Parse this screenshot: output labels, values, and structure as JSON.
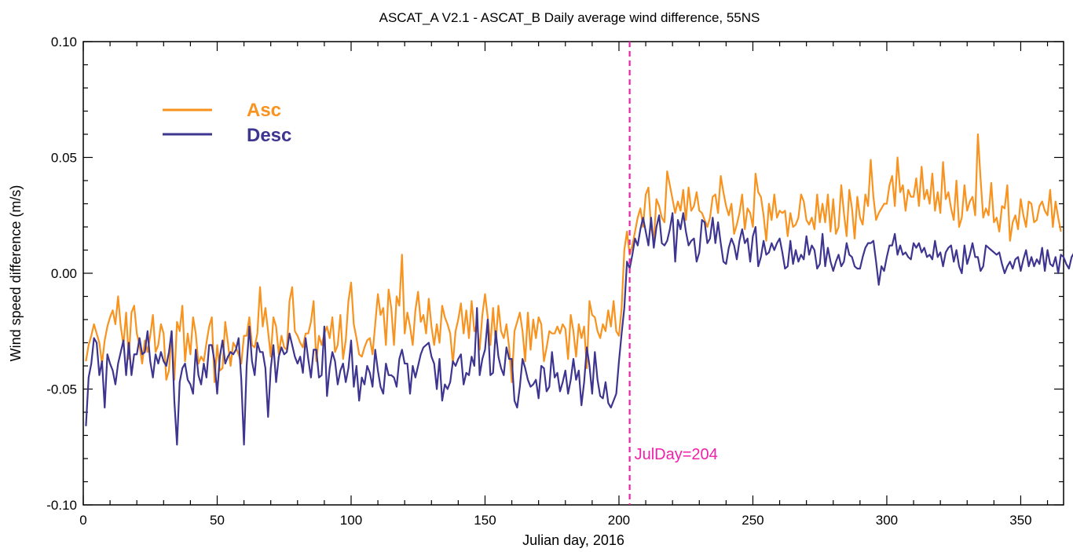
{
  "chart_data": {
    "type": "line",
    "title": "ASCAT_A V2.1 - ASCAT_B Daily average wind difference, 55NS",
    "xlabel": "Julian day, 2016",
    "ylabel": "Wind speed difference (m/s)",
    "xlim": [
      0,
      366
    ],
    "ylim": [
      -0.1,
      0.1
    ],
    "x_ticks": [
      0,
      50,
      100,
      150,
      200,
      250,
      300,
      350
    ],
    "x_tick_labels": [
      "0",
      "50",
      "100",
      "150",
      "200",
      "250",
      "300",
      "350"
    ],
    "y_ticks": [
      -0.1,
      -0.05,
      0.0,
      0.05,
      0.1
    ],
    "y_tick_labels": [
      "-0.10",
      "-0.05",
      "0.00",
      "0.05",
      "0.10"
    ],
    "grid": false,
    "legend_position": "top-left",
    "series": [
      {
        "name": "Asc",
        "color": "#f7931e",
        "x_start": 1,
        "x_step": 1,
        "values": [
          -0.038,
          -0.031,
          -0.027,
          -0.022,
          -0.026,
          -0.03,
          -0.039,
          -0.029,
          -0.023,
          -0.019,
          -0.016,
          -0.022,
          -0.01,
          -0.023,
          -0.031,
          -0.017,
          -0.037,
          -0.017,
          -0.014,
          -0.026,
          -0.031,
          -0.039,
          -0.029,
          -0.034,
          -0.027,
          -0.018,
          -0.034,
          -0.031,
          -0.022,
          -0.026,
          -0.046,
          -0.042,
          -0.025,
          -0.046,
          -0.021,
          -0.025,
          -0.014,
          -0.038,
          -0.026,
          -0.035,
          -0.019,
          -0.026,
          -0.039,
          -0.036,
          -0.038,
          -0.03,
          -0.023,
          -0.019,
          -0.047,
          -0.031,
          -0.042,
          -0.041,
          -0.021,
          -0.03,
          -0.04,
          -0.03,
          -0.032,
          -0.035,
          -0.039,
          -0.027,
          -0.027,
          -0.019,
          -0.031,
          -0.032,
          -0.026,
          -0.006,
          -0.023,
          -0.015,
          -0.025,
          -0.036,
          -0.019,
          -0.023,
          -0.035,
          -0.027,
          -0.032,
          -0.033,
          -0.012,
          -0.006,
          -0.025,
          -0.027,
          -0.03,
          -0.032,
          -0.026,
          -0.026,
          -0.021,
          -0.012,
          -0.038,
          -0.027,
          -0.031,
          -0.026,
          -0.023,
          -0.028,
          -0.019,
          -0.034,
          -0.031,
          -0.018,
          -0.037,
          -0.029,
          -0.012,
          -0.004,
          -0.022,
          -0.028,
          -0.035,
          -0.036,
          -0.032,
          -0.029,
          -0.028,
          -0.035,
          -0.022,
          -0.009,
          -0.018,
          -0.015,
          -0.031,
          -0.007,
          -0.015,
          -0.031,
          -0.01,
          -0.014,
          0.008,
          -0.026,
          -0.017,
          -0.023,
          -0.031,
          -0.016,
          -0.008,
          -0.021,
          -0.018,
          -0.026,
          -0.011,
          -0.023,
          -0.031,
          -0.022,
          -0.03,
          -0.014,
          -0.019,
          -0.022,
          -0.026,
          -0.039,
          -0.025,
          -0.02,
          -0.013,
          -0.026,
          -0.016,
          -0.028,
          -0.012,
          -0.025,
          -0.022,
          -0.033,
          -0.018,
          -0.009,
          -0.019,
          -0.031,
          -0.015,
          -0.03,
          -0.014,
          -0.025,
          -0.028,
          -0.022,
          -0.032,
          -0.047,
          -0.025,
          -0.021,
          -0.017,
          -0.025,
          -0.038,
          -0.017,
          -0.033,
          -0.02,
          -0.028,
          -0.019,
          -0.022,
          -0.038,
          -0.032,
          -0.025,
          -0.026,
          -0.026,
          -0.023,
          -0.026,
          -0.022,
          -0.024,
          -0.037,
          -0.018,
          -0.025,
          -0.036,
          -0.022,
          -0.028,
          -0.023,
          -0.041,
          -0.012,
          -0.018,
          -0.019,
          -0.025,
          -0.028,
          -0.022,
          -0.025,
          -0.016,
          -0.023,
          -0.012,
          -0.025,
          -0.027,
          -0.015,
          0.01,
          0.018,
          0.008,
          0.012,
          0.018,
          0.024,
          0.028,
          0.02,
          0.034,
          0.037,
          0.02,
          0.014,
          0.032,
          0.029,
          0.024,
          0.022,
          0.044,
          0.038,
          0.032,
          0.026,
          0.031,
          0.027,
          0.036,
          0.023,
          0.037,
          0.027,
          0.029,
          0.035,
          0.027,
          0.026,
          0.023,
          0.02,
          0.024,
          0.033,
          0.034,
          0.026,
          0.042,
          0.035,
          0.029,
          0.025,
          0.03,
          0.017,
          0.021,
          0.026,
          0.034,
          0.019,
          0.028,
          0.026,
          0.02,
          0.043,
          0.035,
          0.033,
          0.025,
          0.014,
          0.03,
          0.023,
          0.034,
          0.024,
          0.027,
          0.026,
          0.027,
          0.016,
          0.026,
          0.02,
          0.021,
          0.024,
          0.034,
          0.031,
          0.023,
          0.021,
          0.024,
          0.019,
          0.034,
          0.022,
          0.03,
          0.022,
          0.034,
          0.018,
          0.032,
          0.017,
          0.02,
          0.038,
          0.026,
          0.016,
          0.036,
          0.028,
          0.015,
          0.033,
          0.024,
          0.021,
          0.034,
          0.029,
          0.049,
          0.033,
          0.023,
          0.026,
          0.028,
          0.03,
          0.03,
          0.038,
          0.042,
          0.029,
          0.05,
          0.035,
          0.038,
          0.027,
          0.036,
          0.033,
          0.033,
          0.041,
          0.029,
          0.046,
          0.032,
          0.036,
          0.03,
          0.043,
          0.027,
          0.035,
          0.026,
          0.048,
          0.032,
          0.035,
          0.028,
          0.023,
          0.04,
          0.02,
          0.024,
          0.038,
          0.027,
          0.031,
          0.033,
          0.025,
          0.06,
          0.041,
          0.024,
          0.028,
          0.025,
          0.039,
          0.022,
          0.024,
          0.018,
          0.029,
          0.028,
          0.038,
          0.014,
          0.022,
          0.025,
          0.019,
          0.032,
          0.025,
          0.02,
          0.031,
          0.03,
          0.022,
          0.023,
          0.029,
          0.031,
          0.027,
          0.025,
          0.036,
          0.02,
          0.031,
          0.024,
          0.018
        ]
      },
      {
        "name": "Desc",
        "color": "#3d3590",
        "x_start": 1,
        "x_step": 1,
        "values": [
          -0.066,
          -0.045,
          -0.039,
          -0.028,
          -0.03,
          -0.044,
          -0.038,
          -0.058,
          -0.035,
          -0.039,
          -0.042,
          -0.048,
          -0.039,
          -0.034,
          -0.029,
          -0.044,
          -0.03,
          -0.044,
          -0.035,
          -0.035,
          -0.028,
          -0.035,
          -0.034,
          -0.025,
          -0.038,
          -0.045,
          -0.035,
          -0.039,
          -0.034,
          -0.038,
          -0.04,
          -0.034,
          -0.025,
          -0.055,
          -0.074,
          -0.047,
          -0.041,
          -0.039,
          -0.046,
          -0.048,
          -0.052,
          -0.033,
          -0.044,
          -0.048,
          -0.039,
          -0.045,
          -0.031,
          -0.031,
          -0.038,
          -0.052,
          -0.036,
          -0.029,
          -0.039,
          -0.036,
          -0.034,
          -0.035,
          -0.033,
          -0.028,
          -0.046,
          -0.074,
          -0.04,
          -0.023,
          -0.038,
          -0.044,
          -0.03,
          -0.034,
          -0.034,
          -0.041,
          -0.062,
          -0.041,
          -0.031,
          -0.047,
          -0.036,
          -0.032,
          -0.035,
          -0.034,
          -0.026,
          -0.031,
          -0.036,
          -0.039,
          -0.036,
          -0.043,
          -0.028,
          -0.037,
          -0.045,
          -0.033,
          -0.033,
          -0.045,
          -0.044,
          -0.023,
          -0.053,
          -0.041,
          -0.034,
          -0.038,
          -0.048,
          -0.042,
          -0.039,
          -0.047,
          -0.041,
          -0.029,
          -0.049,
          -0.04,
          -0.055,
          -0.045,
          -0.048,
          -0.04,
          -0.043,
          -0.049,
          -0.033,
          -0.042,
          -0.049,
          -0.052,
          -0.039,
          -0.044,
          -0.044,
          -0.045,
          -0.049,
          -0.037,
          -0.033,
          -0.039,
          -0.039,
          -0.052,
          -0.04,
          -0.045,
          -0.04,
          -0.035,
          -0.032,
          -0.031,
          -0.03,
          -0.036,
          -0.039,
          -0.05,
          -0.037,
          -0.055,
          -0.048,
          -0.05,
          -0.047,
          -0.038,
          -0.04,
          -0.037,
          -0.035,
          -0.048,
          -0.043,
          -0.044,
          -0.036,
          -0.04,
          -0.015,
          -0.044,
          -0.037,
          -0.033,
          -0.02,
          -0.044,
          -0.043,
          -0.025,
          -0.036,
          -0.041,
          -0.044,
          -0.032,
          -0.037,
          -0.037,
          -0.055,
          -0.058,
          -0.049,
          -0.037,
          -0.041,
          -0.046,
          -0.049,
          -0.048,
          -0.046,
          -0.054,
          -0.04,
          -0.041,
          -0.051,
          -0.049,
          -0.034,
          -0.045,
          -0.043,
          -0.051,
          -0.047,
          -0.042,
          -0.052,
          -0.046,
          -0.037,
          -0.046,
          -0.042,
          -0.057,
          -0.047,
          -0.032,
          -0.04,
          -0.052,
          -0.034,
          -0.046,
          -0.053,
          -0.054,
          -0.047,
          -0.056,
          -0.058,
          -0.055,
          -0.052,
          -0.038,
          -0.026,
          -0.015,
          0.005,
          0.002,
          0.008,
          0.015,
          0.012,
          0.019,
          0.024,
          0.018,
          0.012,
          0.024,
          0.011,
          0.02,
          0.025,
          0.013,
          0.012,
          0.014,
          0.019,
          0.026,
          0.005,
          0.023,
          0.019,
          0.026,
          0.018,
          0.012,
          0.014,
          0.015,
          0.005,
          0.009,
          0.023,
          0.022,
          0.013,
          0.015,
          0.024,
          0.013,
          0.022,
          0.013,
          0.005,
          0.004,
          0.011,
          0.015,
          0.012,
          0.006,
          0.014,
          0.019,
          0.013,
          0.015,
          0.005,
          0.016,
          0.02,
          0.003,
          0.007,
          0.014,
          0.008,
          0.009,
          0.013,
          0.01,
          0.013,
          0.015,
          0.009,
          0.002,
          0.003,
          0.014,
          0.004,
          0.01,
          0.005,
          0.008,
          0.006,
          0.016,
          0.008,
          0.012,
          0.01,
          0.002,
          0.004,
          0.017,
          0.003,
          0.011,
          0.005,
          0.001,
          0.005,
          0.008,
          0.003,
          0.005,
          0.013,
          0.008,
          0.007,
          0.003,
          0.002,
          0.002,
          0.007,
          0.011,
          0.013,
          0.013,
          0.014,
          0.005,
          -0.005,
          0.003,
          0.001,
          0.007,
          0.012,
          0.012,
          0.017,
          0.008,
          0.012,
          0.008,
          0.009,
          0.007,
          0.006,
          0.013,
          0.011,
          0.013,
          0.009,
          0.011,
          0.007,
          0.008,
          0.006,
          0.014,
          0.007,
          0.009,
          0.003,
          0.009,
          0.011,
          0.012,
          0.005,
          0.01,
          0.003,
          0.0,
          0.012,
          0.004,
          0.008,
          0.013,
          0.007,
          0.007,
          0.001,
          0.003,
          0.012,
          0.011,
          0.01,
          0.009,
          0.008,
          0.009,
          0.004,
          0.0,
          0.003,
          0.005,
          0.002,
          0.006,
          0.007,
          0.001,
          0.006,
          0.01,
          0.003,
          0.007,
          0.003,
          0.006,
          0.004,
          0.011,
          0.001,
          0.01,
          0.004,
          0.003,
          0.007,
          0.0,
          0.008,
          0.007,
          0.004,
          0.002,
          0.007,
          0.009,
          0.004
        ]
      }
    ],
    "annotations": [
      {
        "type": "vline",
        "x": 204,
        "color": "#f020a8",
        "style": "dashed",
        "label": "JulDay=204"
      }
    ]
  }
}
